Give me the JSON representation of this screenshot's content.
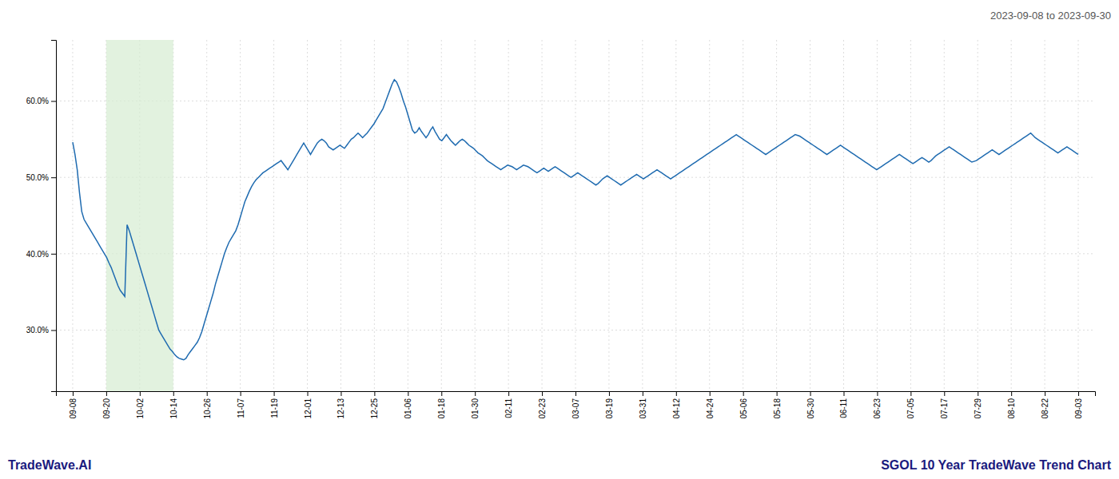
{
  "chart_data": {
    "type": "line",
    "title": "SGOL 10 Year TradeWave Trend Chart",
    "subtitle": "2023-09-08 to 2023-09-30",
    "annotations": [
      "TradeWave.AI"
    ],
    "color": "#1f6bb0",
    "grid": true,
    "highlight": {
      "start": 1,
      "end": 3,
      "color": "#d6ecd2"
    },
    "ylim": [
      0.22,
      0.68
    ],
    "yticks": [
      {
        "value": 0.3,
        "label": "30.0%"
      },
      {
        "value": 0.4,
        "label": "40.0%"
      },
      {
        "value": 0.5,
        "label": "50.0%"
      },
      {
        "value": 0.6,
        "label": "60.0%"
      }
    ],
    "xlim": [
      -0.5,
      30.5
    ],
    "xticks": [
      {
        "value": 0,
        "label": "09-08"
      },
      {
        "value": 1,
        "label": "09-20"
      },
      {
        "value": 2,
        "label": "10-02"
      },
      {
        "value": 3,
        "label": "10-14"
      },
      {
        "value": 4,
        "label": "10-26"
      },
      {
        "value": 5,
        "label": "11-07"
      },
      {
        "value": 6,
        "label": "11-19"
      },
      {
        "value": 7,
        "label": "12-01"
      },
      {
        "value": 8,
        "label": "12-13"
      },
      {
        "value": 9,
        "label": "12-25"
      },
      {
        "value": 10,
        "label": "01-06"
      },
      {
        "value": 11,
        "label": "01-18"
      },
      {
        "value": 12,
        "label": "01-30"
      },
      {
        "value": 13,
        "label": "02-11"
      },
      {
        "value": 14,
        "label": "02-23"
      },
      {
        "value": 15,
        "label": "03-07"
      },
      {
        "value": 16,
        "label": "03-19"
      },
      {
        "value": 17,
        "label": "03-31"
      },
      {
        "value": 18,
        "label": "04-12"
      },
      {
        "value": 19,
        "label": "04-24"
      },
      {
        "value": 20,
        "label": "05-06"
      },
      {
        "value": 21,
        "label": "05-18"
      },
      {
        "value": 22,
        "label": "05-30"
      },
      {
        "value": 23,
        "label": "06-11"
      },
      {
        "value": 24,
        "label": "06-23"
      },
      {
        "value": 25,
        "label": "07-05"
      },
      {
        "value": 26,
        "label": "07-17"
      },
      {
        "value": 27,
        "label": "07-29"
      },
      {
        "value": 28,
        "label": "08-10"
      },
      {
        "value": 29,
        "label": "08-22"
      },
      {
        "value": 30,
        "label": "09-03"
      }
    ],
    "values": [
      0.546,
      0.53,
      0.51,
      0.48,
      0.455,
      0.445,
      0.44,
      0.435,
      0.43,
      0.425,
      0.42,
      0.415,
      0.41,
      0.405,
      0.4,
      0.395,
      0.388,
      0.382,
      0.374,
      0.366,
      0.358,
      0.352,
      0.348,
      0.344,
      0.438,
      0.43,
      0.42,
      0.41,
      0.4,
      0.39,
      0.38,
      0.37,
      0.36,
      0.35,
      0.34,
      0.33,
      0.32,
      0.31,
      0.3,
      0.295,
      0.29,
      0.285,
      0.28,
      0.275,
      0.272,
      0.268,
      0.265,
      0.263,
      0.262,
      0.261,
      0.263,
      0.268,
      0.272,
      0.276,
      0.28,
      0.284,
      0.29,
      0.298,
      0.308,
      0.318,
      0.328,
      0.338,
      0.348,
      0.36,
      0.37,
      0.38,
      0.39,
      0.4,
      0.408,
      0.415,
      0.42,
      0.425,
      0.43,
      0.438,
      0.448,
      0.458,
      0.468,
      0.475,
      0.482,
      0.488,
      0.493,
      0.497,
      0.5,
      0.503,
      0.506,
      0.508,
      0.51,
      0.512,
      0.514,
      0.516,
      0.518,
      0.52,
      0.522,
      0.518,
      0.514,
      0.51,
      0.515,
      0.52,
      0.525,
      0.53,
      0.535,
      0.54,
      0.545,
      0.54,
      0.535,
      0.53,
      0.535,
      0.54,
      0.545,
      0.548,
      0.55,
      0.548,
      0.545,
      0.54,
      0.538,
      0.536,
      0.538,
      0.54,
      0.542,
      0.54,
      0.538,
      0.542,
      0.546,
      0.55,
      0.552,
      0.555,
      0.558,
      0.555,
      0.552,
      0.555,
      0.558,
      0.562,
      0.566,
      0.57,
      0.575,
      0.58,
      0.585,
      0.59,
      0.598,
      0.606,
      0.614,
      0.622,
      0.628,
      0.625,
      0.618,
      0.61,
      0.6,
      0.592,
      0.582,
      0.572,
      0.562,
      0.558,
      0.56,
      0.565,
      0.56,
      0.556,
      0.552,
      0.556,
      0.562,
      0.566,
      0.56,
      0.555,
      0.55,
      0.548,
      0.552,
      0.556,
      0.552,
      0.548,
      0.545,
      0.542,
      0.545,
      0.548,
      0.55,
      0.548,
      0.545,
      0.542,
      0.54,
      0.538,
      0.535,
      0.532,
      0.53,
      0.528,
      0.525,
      0.522,
      0.52,
      0.518,
      0.516,
      0.514,
      0.512,
      0.51,
      0.512,
      0.514,
      0.516,
      0.515,
      0.514,
      0.512,
      0.51,
      0.512,
      0.514,
      0.516,
      0.515,
      0.514,
      0.512,
      0.51,
      0.508,
      0.506,
      0.508,
      0.51,
      0.512,
      0.51,
      0.508,
      0.51,
      0.512,
      0.514,
      0.512,
      0.51,
      0.508,
      0.506,
      0.504,
      0.502,
      0.5,
      0.502,
      0.504,
      0.506,
      0.504,
      0.502,
      0.5,
      0.498,
      0.496,
      0.494,
      0.492,
      0.49,
      0.492,
      0.495,
      0.498,
      0.5,
      0.502,
      0.5,
      0.498,
      0.496,
      0.494,
      0.492,
      0.49,
      0.492,
      0.494,
      0.496,
      0.498,
      0.5,
      0.502,
      0.504,
      0.502,
      0.5,
      0.498,
      0.5,
      0.502,
      0.504,
      0.506,
      0.508,
      0.51,
      0.508,
      0.506,
      0.504,
      0.502,
      0.5,
      0.498,
      0.5,
      0.502,
      0.504,
      0.506,
      0.508,
      0.51,
      0.512,
      0.514,
      0.516,
      0.518,
      0.52,
      0.522,
      0.524,
      0.526,
      0.528,
      0.53,
      0.532,
      0.534,
      0.536,
      0.538,
      0.54,
      0.542,
      0.544,
      0.546,
      0.548,
      0.55,
      0.552,
      0.554,
      0.556,
      0.554,
      0.552,
      0.55,
      0.548,
      0.546,
      0.544,
      0.542,
      0.54,
      0.538,
      0.536,
      0.534,
      0.532,
      0.53,
      0.532,
      0.534,
      0.536,
      0.538,
      0.54,
      0.542,
      0.544,
      0.546,
      0.548,
      0.55,
      0.552,
      0.554,
      0.556,
      0.555,
      0.554,
      0.552,
      0.55,
      0.548,
      0.546,
      0.544,
      0.542,
      0.54,
      0.538,
      0.536,
      0.534,
      0.532,
      0.53,
      0.532,
      0.534,
      0.536,
      0.538,
      0.54,
      0.542,
      0.54,
      0.538,
      0.536,
      0.534,
      0.532,
      0.53,
      0.528,
      0.526,
      0.524,
      0.522,
      0.52,
      0.518,
      0.516,
      0.514,
      0.512,
      0.51,
      0.512,
      0.514,
      0.516,
      0.518,
      0.52,
      0.522,
      0.524,
      0.526,
      0.528,
      0.53,
      0.528,
      0.526,
      0.524,
      0.522,
      0.52,
      0.518,
      0.52,
      0.522,
      0.524,
      0.526,
      0.524,
      0.522,
      0.52,
      0.522,
      0.525,
      0.528,
      0.53,
      0.532,
      0.534,
      0.536,
      0.538,
      0.54,
      0.538,
      0.536,
      0.534,
      0.532,
      0.53,
      0.528,
      0.526,
      0.524,
      0.522,
      0.52,
      0.521,
      0.522,
      0.524,
      0.526,
      0.528,
      0.53,
      0.532,
      0.534,
      0.536,
      0.534,
      0.532,
      0.53,
      0.532,
      0.534,
      0.536,
      0.538,
      0.54,
      0.542,
      0.544,
      0.546,
      0.548,
      0.55,
      0.552,
      0.554,
      0.556,
      0.558,
      0.555,
      0.552,
      0.55,
      0.548,
      0.546,
      0.544,
      0.542,
      0.54,
      0.538,
      0.536,
      0.534,
      0.532,
      0.534,
      0.536,
      0.538,
      0.54,
      0.538,
      0.536,
      0.534,
      0.532,
      0.53
    ]
  }
}
